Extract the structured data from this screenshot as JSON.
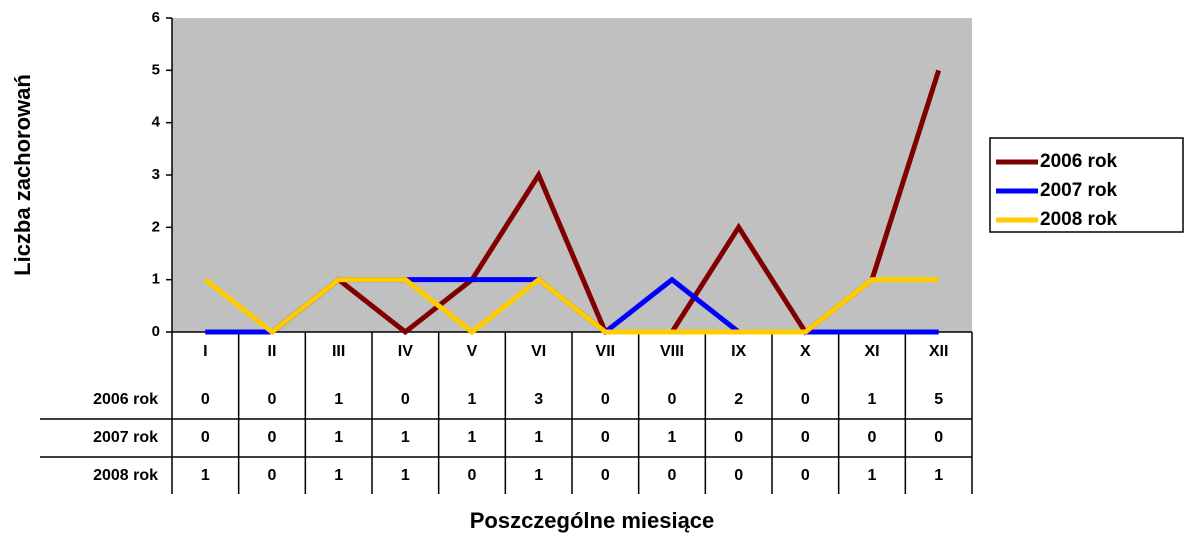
{
  "chart_data": {
    "type": "line",
    "x_label": "Poszczególne miesiące",
    "y_label": "Liczba zachorowań",
    "categories": [
      "I",
      "II",
      "III",
      "IV",
      "V",
      "VI",
      "VII",
      "VIII",
      "IX",
      "X",
      "XI",
      "XII"
    ],
    "series": [
      {
        "name": "2006 rok",
        "color": "#800000",
        "values": [
          0,
          0,
          1,
          0,
          1,
          3,
          0,
          0,
          2,
          0,
          1,
          5
        ]
      },
      {
        "name": "2007 rok",
        "color": "#0000ff",
        "values": [
          0,
          0,
          1,
          1,
          1,
          1,
          0,
          1,
          0,
          0,
          0,
          0
        ]
      },
      {
        "name": "2008 rok",
        "color": "#ffcc00",
        "values": [
          1,
          0,
          1,
          1,
          0,
          1,
          0,
          0,
          0,
          0,
          1,
          1
        ]
      }
    ],
    "ylim": [
      0,
      6
    ],
    "yticks": [
      0,
      1,
      2,
      3,
      4,
      5,
      6
    ],
    "plot_background": "#c0c0c0",
    "legend": "right",
    "data_table": true
  }
}
